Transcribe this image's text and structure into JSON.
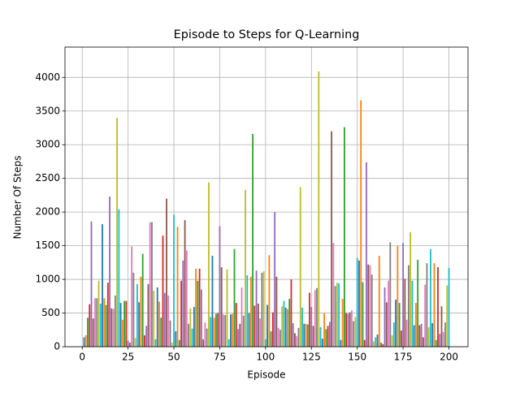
{
  "chart_data": {
    "type": "bar",
    "title": "Episode to Steps for Q-Learning",
    "x_label": "Episode",
    "y_label": "Number Of Steps",
    "x": [
      1,
      2,
      3,
      4,
      5,
      6,
      7,
      8,
      9,
      10,
      11,
      12,
      13,
      14,
      15,
      16,
      17,
      18,
      19,
      20,
      21,
      22,
      23,
      24,
      25,
      26,
      27,
      28,
      29,
      30,
      31,
      32,
      33,
      34,
      35,
      36,
      37,
      38,
      39,
      40,
      41,
      42,
      43,
      44,
      45,
      46,
      47,
      48,
      49,
      50,
      51,
      52,
      53,
      54,
      55,
      56,
      57,
      58,
      59,
      60,
      61,
      62,
      63,
      64,
      65,
      66,
      67,
      68,
      69,
      70,
      71,
      72,
      73,
      74,
      75,
      76,
      77,
      78,
      79,
      80,
      81,
      82,
      83,
      84,
      85,
      86,
      87,
      88,
      89,
      90,
      91,
      92,
      93,
      94,
      95,
      96,
      97,
      98,
      99,
      100,
      101,
      102,
      103,
      104,
      105,
      106,
      107,
      108,
      109,
      110,
      111,
      112,
      113,
      114,
      115,
      116,
      117,
      118,
      119,
      120,
      121,
      122,
      123,
      124,
      125,
      126,
      127,
      128,
      129,
      130,
      131,
      132,
      133,
      134,
      135,
      136,
      137,
      138,
      139,
      140,
      141,
      142,
      143,
      144,
      145,
      146,
      147,
      148,
      149,
      150,
      151,
      152,
      153,
      154,
      155,
      156,
      157,
      158,
      159,
      160,
      161,
      162,
      163,
      164,
      165,
      166,
      167,
      168,
      169,
      170,
      171,
      172,
      173,
      174,
      175,
      176,
      177,
      178,
      179,
      180,
      181,
      182,
      183,
      184,
      185,
      186,
      187,
      188,
      189,
      190,
      191,
      192,
      193,
      194,
      195,
      196,
      197,
      198,
      199,
      200
    ],
    "values": [
      140,
      170,
      430,
      630,
      1860,
      420,
      720,
      720,
      980,
      640,
      1820,
      720,
      620,
      950,
      2230,
      570,
      560,
      760,
      3400,
      2040,
      650,
      400,
      680,
      680,
      90,
      60,
      1490,
      1100,
      130,
      930,
      660,
      1040,
      1380,
      170,
      310,
      930,
      1850,
      1850,
      830,
      110,
      880,
      670,
      430,
      1650,
      800,
      2200,
      760,
      390,
      60,
      1960,
      230,
      1780,
      100,
      980,
      1280,
      1880,
      1430,
      340,
      570,
      270,
      590,
      1160,
      980,
      1160,
      850,
      110,
      360,
      270,
      2440,
      440,
      1350,
      430,
      490,
      500,
      1790,
      1180,
      480,
      470,
      1150,
      110,
      480,
      490,
      1450,
      650,
      260,
      340,
      880,
      460,
      2330,
      1060,
      500,
      1040,
      3160,
      610,
      1130,
      640,
      420,
      1100,
      1120,
      110,
      620,
      1360,
      230,
      510,
      2000,
      1040,
      280,
      250,
      600,
      680,
      580,
      560,
      710,
      1000,
      350,
      200,
      160,
      280,
      2370,
      580,
      340,
      340,
      330,
      800,
      590,
      310,
      840,
      870,
      4090,
      290,
      120,
      500,
      260,
      310,
      370,
      3200,
      1540,
      900,
      950,
      940,
      100,
      710,
      3260,
      500,
      490,
      510,
      540,
      380,
      440,
      1320,
      1280,
      3660,
      960,
      100,
      2740,
      1220,
      1210,
      1070,
      80,
      140,
      180,
      1350,
      60,
      40,
      880,
      660,
      980,
      1550,
      170,
      360,
      700,
      1500,
      650,
      240,
      1540,
      1010,
      400,
      1210,
      1700,
      980,
      320,
      650,
      1290,
      320,
      340,
      140,
      920,
      1240,
      290,
      1450,
      350,
      1240,
      100,
      1180,
      190,
      600,
      220,
      360,
      910,
      1170
    ],
    "colors": [
      "#1f77b4",
      "#ff7f0e",
      "#2ca02c",
      "#d62728",
      "#9467bd",
      "#8c564b",
      "#e377c2",
      "#7f7f7f",
      "#bcbd22",
      "#17becf"
    ],
    "xlim": [
      -9.4,
      210.4
    ],
    "ylim": [
      0,
      4450
    ],
    "xticks": [
      0,
      25,
      50,
      75,
      100,
      125,
      150,
      175,
      200
    ],
    "yticks": [
      0,
      500,
      1000,
      1500,
      2000,
      2500,
      3000,
      3500,
      4000
    ],
    "grid": true
  }
}
